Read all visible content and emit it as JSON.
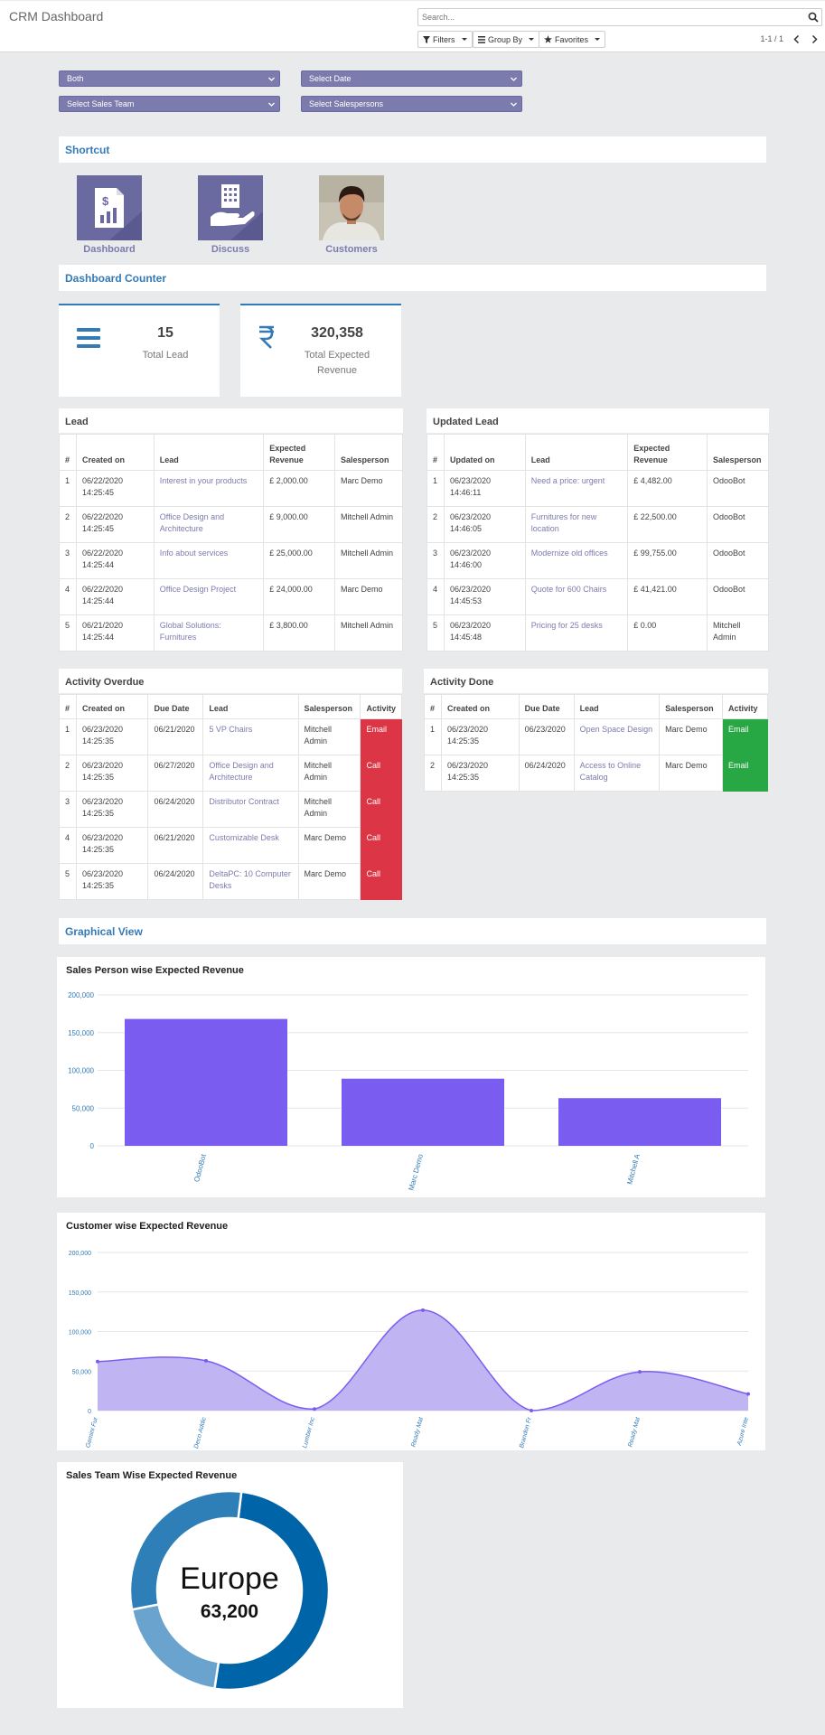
{
  "control_panel": {
    "title": "CRM Dashboard",
    "search_placeholder": "Search...",
    "filters_label": "Filters",
    "groupby_label": "Group By",
    "favorites_label": "Favorites",
    "pager": "1-1 / 1"
  },
  "filters": {
    "type_select": "Both",
    "date_select": "Select Date",
    "team_select": "Select Sales Team",
    "salesperson_select": "Select Salespersons"
  },
  "shortcut": {
    "title": "Shortcut",
    "items": [
      {
        "label": "Dashboard",
        "icon": "dashboard-report-icon"
      },
      {
        "label": "Discuss",
        "icon": "building-hand-icon"
      },
      {
        "label": "Customers",
        "icon": "customer-photo"
      }
    ]
  },
  "counter": {
    "title": "Dashboard Counter",
    "total_lead_value": "15",
    "total_lead_label": "Total Lead",
    "revenue_value": "320,358",
    "revenue_label_1": "Total Expected",
    "revenue_label_2": "Revenue"
  },
  "lead_table": {
    "title": "Lead",
    "headers": [
      "#",
      "Created on",
      "Lead",
      "Expected Revenue",
      "Salesperson"
    ],
    "rows": [
      {
        "n": "1",
        "date": "06/22/2020",
        "time": "14:25:45",
        "lead": "Interest in your products",
        "revenue": "£ 2,000.00",
        "sp": "Marc Demo"
      },
      {
        "n": "2",
        "date": "06/22/2020",
        "time": "14:25:45",
        "lead": "Office Design and Architecture",
        "revenue": "£ 9,000.00",
        "sp": "Mitchell Admin"
      },
      {
        "n": "3",
        "date": "06/22/2020",
        "time": "14:25:44",
        "lead": "Info about services",
        "revenue": "£ 25,000.00",
        "sp": "Mitchell Admin"
      },
      {
        "n": "4",
        "date": "06/22/2020",
        "time": "14:25:44",
        "lead": "Office Design Project",
        "revenue": "£ 24,000.00",
        "sp": "Marc Demo"
      },
      {
        "n": "5",
        "date": "06/21/2020",
        "time": "14:25:44",
        "lead": "Global Solutions: Furnitures",
        "revenue": "£ 3,800.00",
        "sp": "Mitchell Admin"
      }
    ]
  },
  "updated_table": {
    "title": "Updated Lead",
    "headers": [
      "#",
      "Updated on",
      "Lead",
      "Expected Revenue",
      "Salesperson"
    ],
    "rows": [
      {
        "n": "1",
        "date": "06/23/2020",
        "time": "14:46:11",
        "lead": "Need a price: urgent",
        "revenue": "£ 4,482.00",
        "sp": "OdooBot"
      },
      {
        "n": "2",
        "date": "06/23/2020",
        "time": "14:46:05",
        "lead": "Furnitures for new location",
        "revenue": "£ 22,500.00",
        "sp": "OdooBot"
      },
      {
        "n": "3",
        "date": "06/23/2020",
        "time": "14:46:00",
        "lead": "Modernize old offices",
        "revenue": "£ 99,755.00",
        "sp": "OdooBot"
      },
      {
        "n": "4",
        "date": "06/23/2020",
        "time": "14:45:53",
        "lead": "Quote for 600 Chairs",
        "revenue": "£ 41,421.00",
        "sp": "OdooBot"
      },
      {
        "n": "5",
        "date": "06/23/2020",
        "time": "14:45:48",
        "lead": "Pricing for 25 desks",
        "revenue": "£ 0.00",
        "sp": "Mitchell Admin"
      }
    ]
  },
  "overdue_table": {
    "title": "Activity Overdue",
    "headers": [
      "#",
      "Created on",
      "Due Date",
      "Lead",
      "Salesperson",
      "Activity"
    ],
    "rows": [
      {
        "n": "1",
        "date": "06/23/2020",
        "time": "14:25:35",
        "due": "06/21/2020",
        "lead": "5 VP Chairs",
        "sp": "Mitchell Admin",
        "act": "Email"
      },
      {
        "n": "2",
        "date": "06/23/2020",
        "time": "14:25:35",
        "due": "06/27/2020",
        "lead": "Office Design and Architecture",
        "sp": "Mitchell Admin",
        "act": "Call"
      },
      {
        "n": "3",
        "date": "06/23/2020",
        "time": "14:25:35",
        "due": "06/24/2020",
        "lead": "Distributor Contract",
        "sp": "Mitchell Admin",
        "act": "Call"
      },
      {
        "n": "4",
        "date": "06/23/2020",
        "time": "14:25:35",
        "due": "06/21/2020",
        "lead": "Customizable Desk",
        "sp": "Marc Demo",
        "act": "Call"
      },
      {
        "n": "5",
        "date": "06/23/2020",
        "time": "14:25:35",
        "due": "06/24/2020",
        "lead": "DeltaPC: 10 Computer Desks",
        "sp": "Marc Demo",
        "act": "Call"
      }
    ]
  },
  "done_table": {
    "title": "Activity Done",
    "headers": [
      "#",
      "Created on",
      "Due Date",
      "Lead",
      "Salesperson",
      "Activity"
    ],
    "rows": [
      {
        "n": "1",
        "date": "06/23/2020",
        "time": "14:25:35",
        "due": "06/23/2020",
        "lead": "Open Space Design",
        "sp": "Marc Demo",
        "act": "Email"
      },
      {
        "n": "2",
        "date": "06/23/2020",
        "time": "14:25:35",
        "due": "06/24/2020",
        "lead": "Access to Online Catalog",
        "sp": "Marc Demo",
        "act": "Email"
      }
    ]
  },
  "graphical": {
    "title": "Graphical View"
  },
  "colors": {
    "accent": "#7c7bad",
    "bar": "#7b5cf0",
    "area_fill": "#c0b4f2",
    "area_line": "#7b5cf0",
    "header_blue": "#337ab7",
    "danger": "#dc3545",
    "success": "#28a745",
    "donut_dark": "#0064a8",
    "donut_mid": "#2e7fb8",
    "donut_light": "#6aa3cd"
  },
  "chart_data": [
    {
      "type": "bar",
      "title": "Sales Person wise Expected Revenue",
      "categories": [
        "OdooBot",
        "Marc Demo",
        "Mitchell A"
      ],
      "values": [
        168158,
        89000,
        63200
      ],
      "ylim": [
        0,
        200000
      ],
      "yticks": [
        "200,000",
        "150,000",
        "100,000",
        "50,000",
        "0"
      ],
      "grid": true
    },
    {
      "type": "area",
      "title": "Customer wise Expected Revenue",
      "categories": [
        "Gemini Fur",
        "Deco Addic",
        "Lumber Inc",
        "Ready Mat",
        "Brandon Fr",
        "Ready Mat",
        "Azure Inte"
      ],
      "values": [
        62000,
        63000,
        2000,
        127000,
        0,
        49000,
        21000
      ],
      "ylim": [
        0,
        200000
      ],
      "yticks": [
        "200,000",
        "150,000",
        "100,000",
        "50,000",
        "0"
      ],
      "grid": true
    },
    {
      "type": "pie",
      "title": "Sales Team Wise Expected Revenue",
      "center_label": "Europe",
      "center_value": "63,200",
      "slices": [
        {
          "value": 0.505
        },
        {
          "value": 0.195
        },
        {
          "value": 0.3
        }
      ]
    }
  ]
}
